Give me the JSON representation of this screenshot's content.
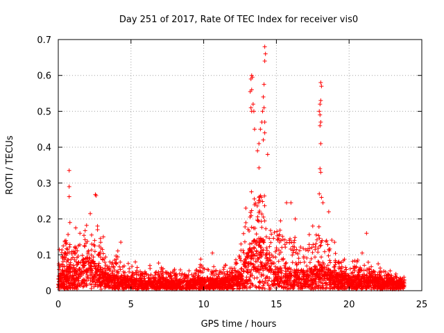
{
  "chart_data": {
    "type": "scatter",
    "title": "Day 251 of 2017, Rate Of TEC Index for receiver vis0",
    "xlabel": "GPS time / hours",
    "ylabel": "ROTI / TECUs",
    "xlim": [
      0,
      25
    ],
    "ylim": [
      0,
      0.7
    ],
    "x_ticks": [
      0,
      5,
      10,
      15,
      20,
      25
    ],
    "x_tick_labels": [
      "0",
      "5",
      "10",
      "15",
      "20",
      "25"
    ],
    "y_ticks": [
      0,
      0.1,
      0.2,
      0.3,
      0.4,
      0.5,
      0.6,
      0.7
    ],
    "y_tick_labels": [
      "0",
      "0.1",
      "0.2",
      "0.3",
      "0.4",
      "0.5",
      "0.6",
      "0.7"
    ],
    "grid": true,
    "marker": "+",
    "marker_color": "#ff0000",
    "series": [
      {
        "name": "ROTI",
        "x_range": [
          0,
          23.8
        ],
        "envelope": [
          {
            "x": 0.0,
            "typical": 0.04,
            "max": 0.12
          },
          {
            "x": 0.5,
            "typical": 0.07,
            "max": 0.18
          },
          {
            "x": 1.0,
            "typical": 0.06,
            "max": 0.16
          },
          {
            "x": 1.5,
            "typical": 0.08,
            "max": 0.16
          },
          {
            "x": 2.0,
            "typical": 0.09,
            "max": 0.2
          },
          {
            "x": 2.5,
            "typical": 0.08,
            "max": 0.19
          },
          {
            "x": 3.0,
            "typical": 0.06,
            "max": 0.15
          },
          {
            "x": 3.5,
            "typical": 0.04,
            "max": 0.1
          },
          {
            "x": 4.0,
            "typical": 0.04,
            "max": 0.13
          },
          {
            "x": 4.5,
            "typical": 0.04,
            "max": 0.1
          },
          {
            "x": 5.0,
            "typical": 0.03,
            "max": 0.07
          },
          {
            "x": 6.0,
            "typical": 0.025,
            "max": 0.06
          },
          {
            "x": 7.0,
            "typical": 0.025,
            "max": 0.07
          },
          {
            "x": 8.0,
            "typical": 0.025,
            "max": 0.06
          },
          {
            "x": 9.0,
            "typical": 0.025,
            "max": 0.06
          },
          {
            "x": 10.0,
            "typical": 0.03,
            "max": 0.08
          },
          {
            "x": 11.0,
            "typical": 0.03,
            "max": 0.07
          },
          {
            "x": 12.0,
            "typical": 0.035,
            "max": 0.08
          },
          {
            "x": 12.5,
            "typical": 0.05,
            "max": 0.14
          },
          {
            "x": 13.0,
            "typical": 0.1,
            "max": 0.28
          },
          {
            "x": 13.5,
            "typical": 0.14,
            "max": 0.35
          },
          {
            "x": 14.0,
            "typical": 0.15,
            "max": 0.36
          },
          {
            "x": 14.5,
            "typical": 0.1,
            "max": 0.28
          },
          {
            "x": 15.0,
            "typical": 0.06,
            "max": 0.2
          },
          {
            "x": 15.5,
            "typical": 0.06,
            "max": 0.2
          },
          {
            "x": 16.0,
            "typical": 0.06,
            "max": 0.2
          },
          {
            "x": 16.5,
            "typical": 0.055,
            "max": 0.17
          },
          {
            "x": 17.0,
            "typical": 0.05,
            "max": 0.15
          },
          {
            "x": 17.5,
            "typical": 0.06,
            "max": 0.18
          },
          {
            "x": 18.0,
            "typical": 0.07,
            "max": 0.22
          },
          {
            "x": 18.5,
            "typical": 0.06,
            "max": 0.2
          },
          {
            "x": 19.0,
            "typical": 0.045,
            "max": 0.12
          },
          {
            "x": 20.0,
            "typical": 0.035,
            "max": 0.08
          },
          {
            "x": 21.0,
            "typical": 0.04,
            "max": 0.09
          },
          {
            "x": 22.0,
            "typical": 0.035,
            "max": 0.08
          },
          {
            "x": 23.0,
            "typical": 0.03,
            "max": 0.05
          },
          {
            "x": 23.8,
            "typical": 0.025,
            "max": 0.04
          }
        ],
        "outliers": [
          {
            "x": 0.75,
            "y": 0.335
          },
          {
            "x": 0.75,
            "y": 0.29
          },
          {
            "x": 0.75,
            "y": 0.262
          },
          {
            "x": 0.8,
            "y": 0.19
          },
          {
            "x": 1.2,
            "y": 0.175
          },
          {
            "x": 2.2,
            "y": 0.215
          },
          {
            "x": 2.55,
            "y": 0.268
          },
          {
            "x": 2.6,
            "y": 0.265
          },
          {
            "x": 2.7,
            "y": 0.18
          },
          {
            "x": 2.7,
            "y": 0.17
          },
          {
            "x": 3.1,
            "y": 0.15
          },
          {
            "x": 4.3,
            "y": 0.135
          },
          {
            "x": 9.8,
            "y": 0.088
          },
          {
            "x": 10.6,
            "y": 0.105
          },
          {
            "x": 12.9,
            "y": 0.23
          },
          {
            "x": 13.25,
            "y": 0.59
          },
          {
            "x": 13.3,
            "y": 0.6
          },
          {
            "x": 13.35,
            "y": 0.595
          },
          {
            "x": 13.2,
            "y": 0.555
          },
          {
            "x": 13.3,
            "y": 0.56
          },
          {
            "x": 13.3,
            "y": 0.5
          },
          {
            "x": 13.25,
            "y": 0.51
          },
          {
            "x": 13.4,
            "y": 0.52
          },
          {
            "x": 13.45,
            "y": 0.5
          },
          {
            "x": 13.5,
            "y": 0.45
          },
          {
            "x": 13.9,
            "y": 0.45
          },
          {
            "x": 14.0,
            "y": 0.47
          },
          {
            "x": 14.2,
            "y": 0.68
          },
          {
            "x": 14.25,
            "y": 0.66
          },
          {
            "x": 14.2,
            "y": 0.64
          },
          {
            "x": 14.15,
            "y": 0.575
          },
          {
            "x": 14.1,
            "y": 0.54
          },
          {
            "x": 14.15,
            "y": 0.51
          },
          {
            "x": 14.05,
            "y": 0.5
          },
          {
            "x": 14.2,
            "y": 0.47
          },
          {
            "x": 14.2,
            "y": 0.44
          },
          {
            "x": 14.1,
            "y": 0.42
          },
          {
            "x": 13.8,
            "y": 0.41
          },
          {
            "x": 13.7,
            "y": 0.39
          },
          {
            "x": 14.4,
            "y": 0.38
          },
          {
            "x": 18.05,
            "y": 0.58
          },
          {
            "x": 18.1,
            "y": 0.57
          },
          {
            "x": 18.05,
            "y": 0.53
          },
          {
            "x": 18.0,
            "y": 0.52
          },
          {
            "x": 17.95,
            "y": 0.5
          },
          {
            "x": 18.0,
            "y": 0.49
          },
          {
            "x": 18.05,
            "y": 0.47
          },
          {
            "x": 18.0,
            "y": 0.46
          },
          {
            "x": 18.05,
            "y": 0.41
          },
          {
            "x": 18.0,
            "y": 0.34
          },
          {
            "x": 18.05,
            "y": 0.33
          },
          {
            "x": 17.95,
            "y": 0.27
          },
          {
            "x": 18.1,
            "y": 0.26
          },
          {
            "x": 18.2,
            "y": 0.245
          },
          {
            "x": 15.7,
            "y": 0.245
          },
          {
            "x": 16.0,
            "y": 0.245
          },
          {
            "x": 16.3,
            "y": 0.2
          },
          {
            "x": 17.5,
            "y": 0.18
          },
          {
            "x": 18.6,
            "y": 0.22
          },
          {
            "x": 19.0,
            "y": 0.135
          },
          {
            "x": 21.2,
            "y": 0.16
          },
          {
            "x": 20.9,
            "y": 0.105
          },
          {
            "x": 20.6,
            "y": 0.085
          },
          {
            "x": 22.0,
            "y": 0.075
          },
          {
            "x": 5.3,
            "y": 0.08
          },
          {
            "x": 6.3,
            "y": 0.07
          },
          {
            "x": 6.9,
            "y": 0.077
          },
          {
            "x": 8.4,
            "y": 0.058
          }
        ]
      }
    ]
  }
}
